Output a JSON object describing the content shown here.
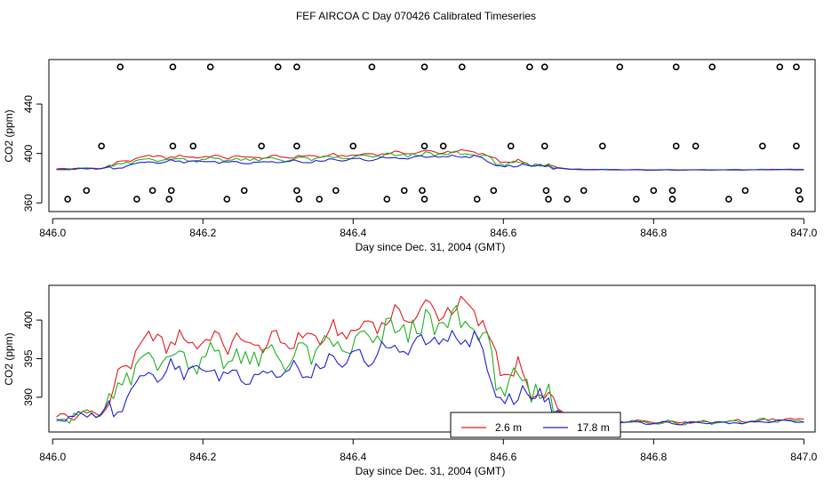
{
  "title": "FEF AIRCOA C  Day 070426  Calibrated Timeseries",
  "colors": {
    "red": "#e41a1c",
    "green": "#1fb01f",
    "blue": "#1f1fd6"
  },
  "chart_data": [
    {
      "type": "scatter+line",
      "xlabel": "Day since Dec. 31, 2004 (GMT)",
      "ylabel": "CO2 (ppm)",
      "xlim": [
        845.995,
        847.015
      ],
      "ylim": [
        353,
        476
      ],
      "xticks": [
        846.0,
        846.2,
        846.4,
        846.6,
        846.8,
        847.0
      ],
      "xtick_labels": [
        "846.0",
        "846.2",
        "846.4",
        "846.6",
        "846.8",
        "847.0"
      ],
      "yticks": [
        360,
        400,
        440
      ],
      "ytick_labels": [
        "360",
        "400",
        "440"
      ],
      "circle_rows": [
        {
          "y": 470,
          "x": [
            846.09,
            846.16,
            846.21,
            846.3,
            846.325,
            846.425,
            846.495,
            846.545,
            846.635,
            846.655,
            846.755,
            846.83,
            846.878,
            846.968,
            846.99
          ]
        },
        {
          "y": 406,
          "x": [
            846.065,
            846.16,
            846.187,
            846.278,
            846.325,
            846.4,
            846.495,
            846.52,
            846.61,
            846.655,
            846.732,
            846.83,
            846.856,
            846.945,
            846.99
          ]
        },
        {
          "y": 370,
          "x": [
            846.045,
            846.133,
            846.158,
            846.255,
            846.325,
            846.377,
            846.468,
            846.492,
            846.587,
            846.657,
            846.707,
            846.8,
            846.825,
            846.922,
            846.993
          ]
        },
        {
          "y": 363,
          "x": [
            846.02,
            846.112,
            846.155,
            846.232,
            846.328,
            846.355,
            846.445,
            846.495,
            846.565,
            846.66,
            846.685,
            846.777,
            846.825,
            846.9,
            846.995
          ]
        }
      ]
    },
    {
      "type": "line",
      "xlabel": "Day since Dec. 31, 2004 (GMT)",
      "ylabel": "CO2 (ppm)",
      "xlim": [
        845.995,
        847.015
      ],
      "ylim": [
        385.5,
        404.5
      ],
      "xticks": [
        846.0,
        846.2,
        846.4,
        846.6,
        846.8,
        847.0
      ],
      "xtick_labels": [
        "846.0",
        "846.2",
        "846.4",
        "846.6",
        "846.8",
        "847.0"
      ],
      "yticks": [
        390,
        395,
        400
      ],
      "ytick_labels": [
        "390",
        "395",
        "400"
      ],
      "legend": {
        "position": "bottom-center",
        "entries": [
          "2.6 m",
          "17.8 m"
        ]
      }
    }
  ]
}
